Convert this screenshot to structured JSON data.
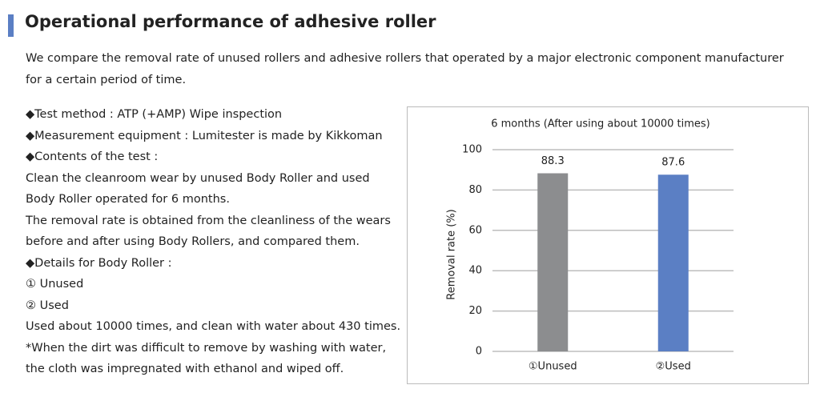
{
  "header": {
    "title": "Operational performance of adhesive roller"
  },
  "intro": "We compare the removal rate of unused rollers and adhesive rollers that operated by a major electronic component manufacturer for a certain period of time.",
  "lines": [
    "◆Test method : ATP (+AMP) Wipe inspection",
    "◆Measurement equipment : Lumitester is made by Kikkoman",
    "◆Contents of the test :",
    "Clean the cleanroom wear by unused Body Roller and used",
    "Body Roller operated for 6 months.",
    "The removal rate is obtained from the cleanliness of the wears",
    "before and after using Body Rollers, and compared them.",
    "◆Details for Body Roller :",
    "① Unused",
    "② Used",
    "Used about 10000 times, and clean with water about 430 times.",
    "*When the dirt was difficult to remove by washing with water,",
    "the cloth was impregnated with ethanol and wiped off."
  ],
  "chart_data": {
    "type": "bar",
    "title": "6 months (After using about 10000 times)",
    "y_label": "Removal rate (%)",
    "categories": [
      "①Unused",
      "②Used"
    ],
    "values": [
      88.3,
      87.6
    ],
    "colors": [
      "#8c8d8f",
      "#5b7fc4"
    ],
    "ylim": [
      0,
      100
    ],
    "yticks": [
      0,
      20,
      40,
      60,
      80,
      100
    ],
    "grid": true
  }
}
